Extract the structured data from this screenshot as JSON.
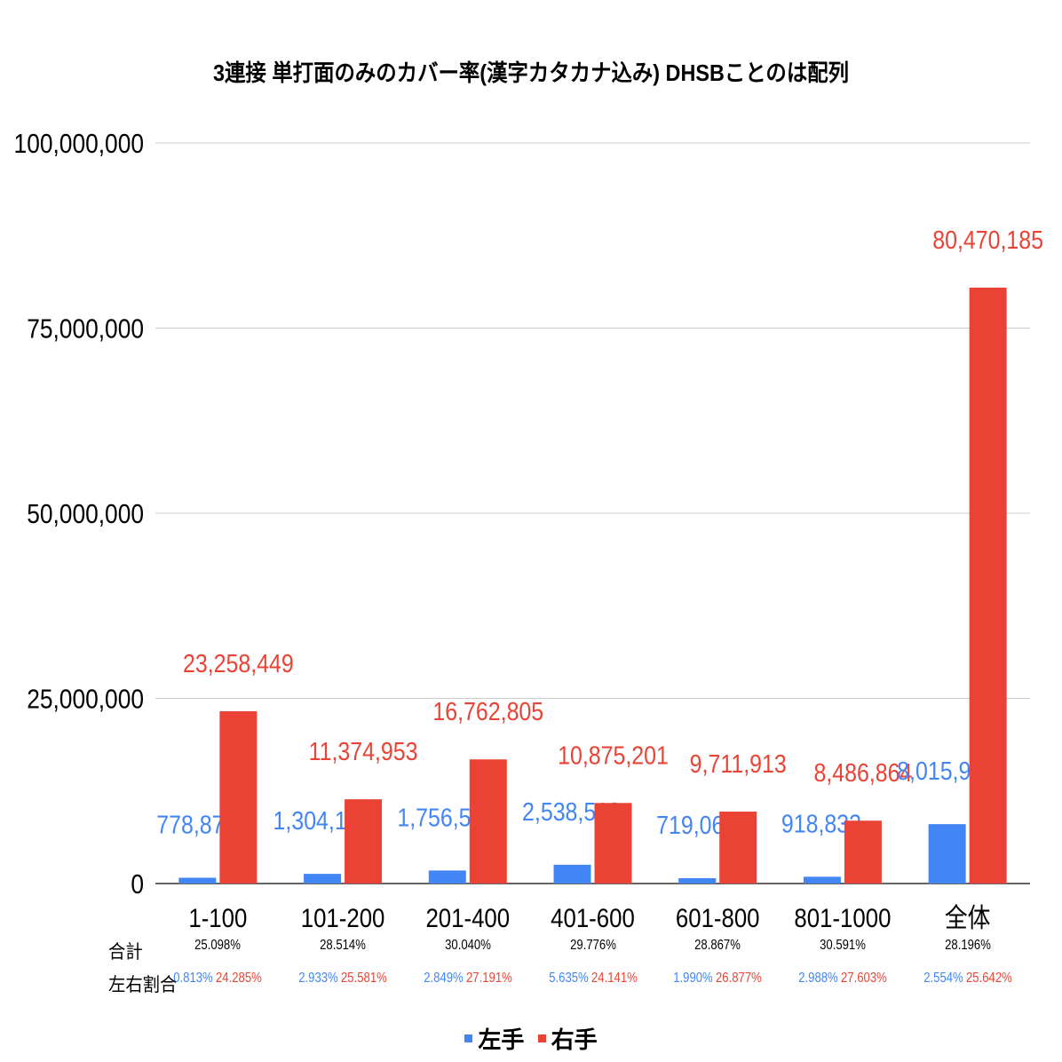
{
  "colors": {
    "left": "#4285f4",
    "right": "#ea4335",
    "grid": "#cccccc",
    "axis": "#333333"
  },
  "stat_labels": {
    "total": "合計",
    "ratio": "左右割合"
  },
  "chart_data": {
    "type": "bar",
    "title": "3連接 単打面のみのカバー率(漢字カタカナ込み) DHSBことのは配列",
    "categories": [
      "1-100",
      "101-200",
      "201-400",
      "401-600",
      "601-800",
      "801-1000",
      "全体"
    ],
    "series": [
      {
        "name": "左手",
        "values": [
          778879,
          1304112,
          1756591,
          2538510,
          719064,
          918833,
          8015989
        ],
        "labels": [
          "778,879",
          "1,304,112",
          "1,756,591",
          "2,538,510",
          "719,064",
          "918,833",
          "8,015,989"
        ]
      },
      {
        "name": "右手",
        "values": [
          23258449,
          11374953,
          16762805,
          10875201,
          9711913,
          8486864,
          80470185
        ],
        "labels": [
          "23,258,449",
          "11,374,953",
          "16,762,805",
          "10,875,201",
          "9,711,913",
          "8,486,864",
          "80,470,185"
        ]
      }
    ],
    "ylim": [
      0,
      100000000
    ],
    "yticks": [
      0,
      25000000,
      50000000,
      75000000,
      100000000
    ],
    "ytick_labels": [
      "0",
      "25,000,000",
      "50,000,000",
      "75,000,000",
      "100,000,000"
    ],
    "grid": true,
    "legend": "bottom",
    "totals": [
      "25.098%",
      "28.514%",
      "30.040%",
      "29.776%",
      "28.867%",
      "30.591%",
      "28.196%"
    ],
    "left_ratio": [
      "0.813%",
      "2.933%",
      "2.849%",
      "5.635%",
      "1.990%",
      "2.988%",
      "2.554%"
    ],
    "right_ratio": [
      "24.285%",
      "25.581%",
      "27.191%",
      "24.141%",
      "26.877%",
      "27.603%",
      "25.642%"
    ]
  }
}
